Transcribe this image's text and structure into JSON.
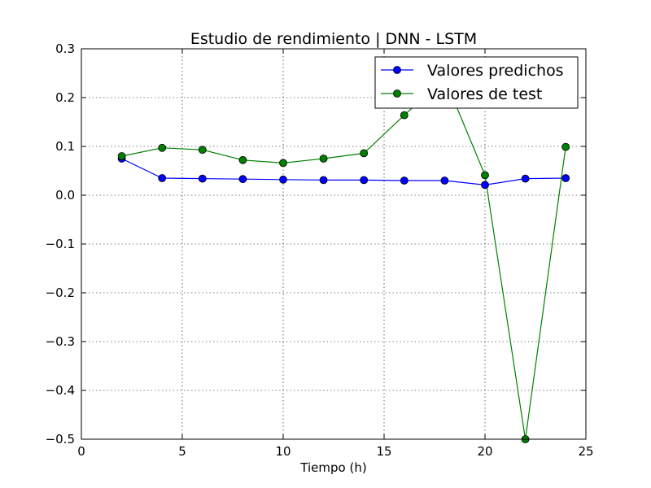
{
  "chart_data": {
    "type": "line",
    "title": "Estudio de rendimiento | DNN - LSTM",
    "xlabel": "Tiempo (h)",
    "ylabel": "",
    "xlim": [
      0,
      25
    ],
    "ylim": [
      -0.5,
      0.3
    ],
    "x_ticks": [
      0,
      5,
      10,
      15,
      20,
      25
    ],
    "x_tick_labels": [
      "0",
      "5",
      "10",
      "15",
      "20",
      "25"
    ],
    "y_ticks": [
      -0.5,
      -0.4,
      -0.3,
      -0.2,
      -0.1,
      0.0,
      0.1,
      0.2,
      0.3
    ],
    "y_tick_labels": [
      "−0.5",
      "−0.4",
      "−0.3",
      "−0.2",
      "−0.1",
      "0.0",
      "0.1",
      "0.2",
      "0.3"
    ],
    "grid": true,
    "legend_position": "top-right",
    "x": [
      2,
      4,
      6,
      8,
      10,
      12,
      14,
      16,
      18,
      20,
      22,
      24
    ],
    "series": [
      {
        "name": "Valores predichos",
        "color": "#0000ff",
        "values": [
          0.075,
          0.035,
          0.034,
          0.033,
          0.032,
          0.031,
          0.031,
          0.03,
          0.03,
          0.021,
          0.034,
          0.035
        ]
      },
      {
        "name": "Valores de test",
        "color": "#007f00",
        "values": [
          0.08,
          0.097,
          0.093,
          0.072,
          0.066,
          0.075,
          0.086,
          0.164,
          0.24,
          0.041,
          -0.5,
          0.099
        ]
      }
    ]
  }
}
